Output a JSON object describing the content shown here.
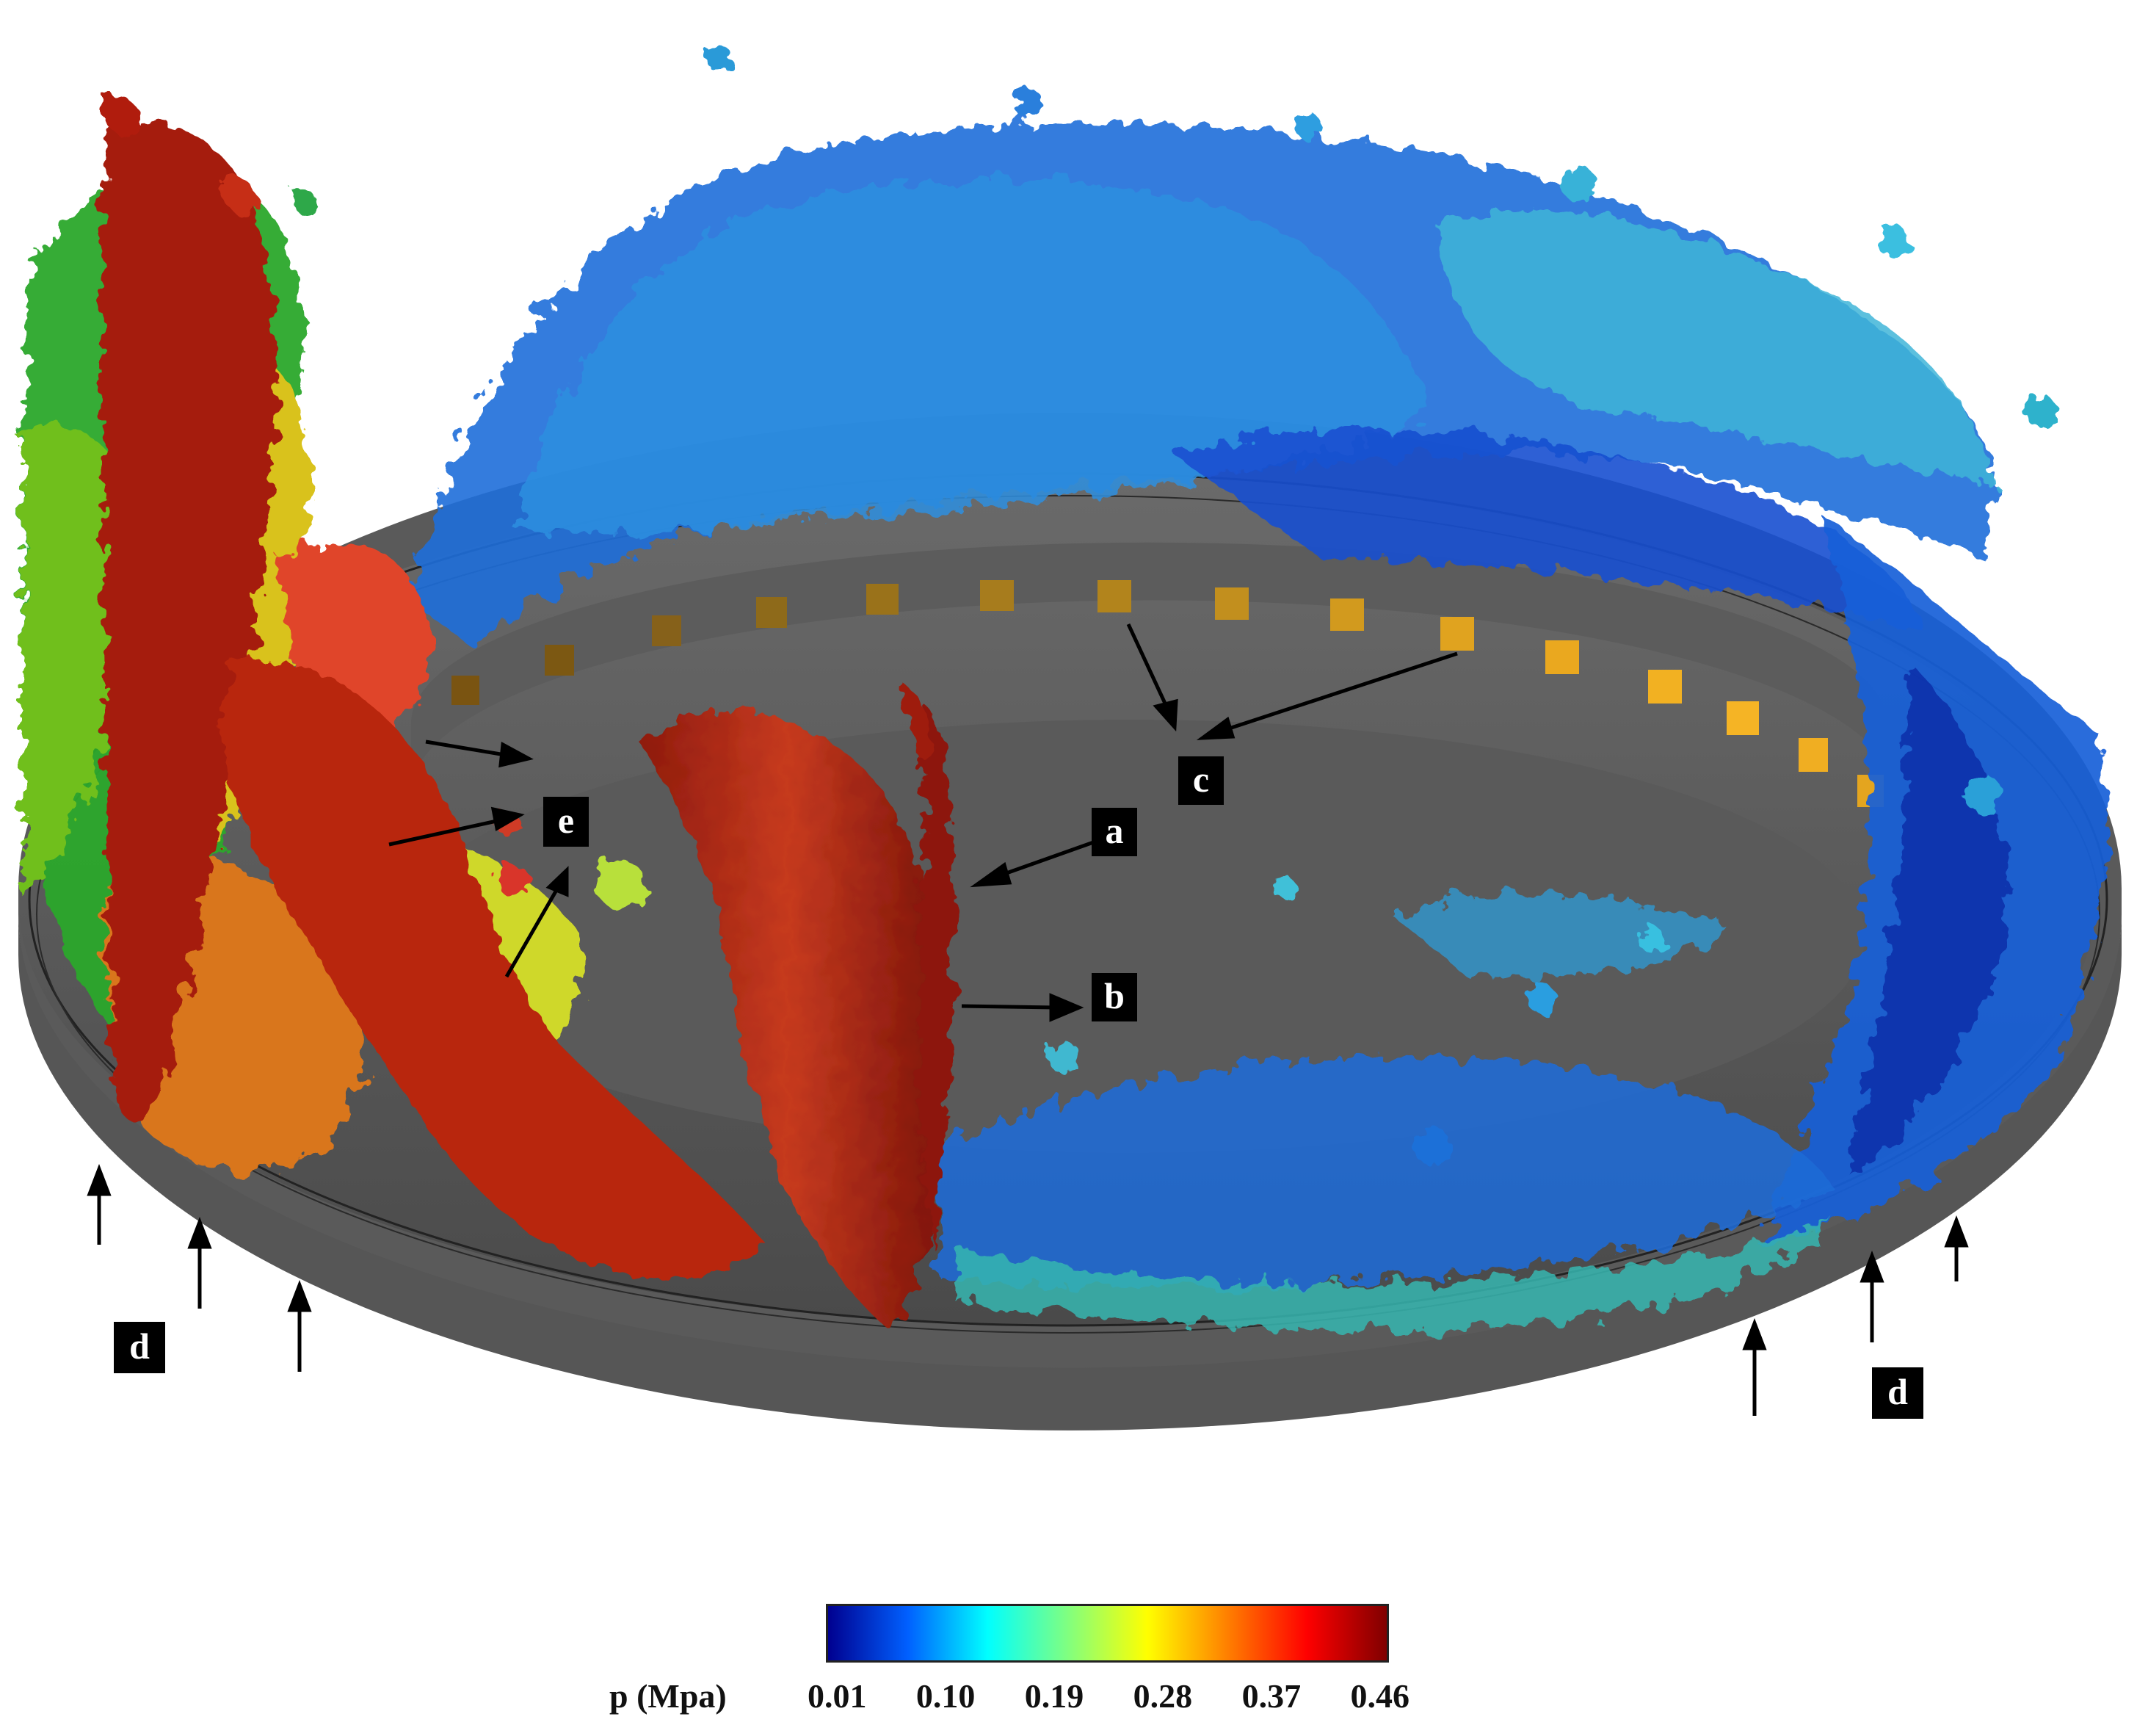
{
  "labels": [
    "a",
    "b",
    "c",
    "d",
    "e"
  ],
  "colorbar": {
    "title": "p (Mpa)",
    "ticks": [
      "0.01",
      "0.10",
      "0.19",
      "0.28",
      "0.37",
      "0.46"
    ],
    "colors": [
      "#00008f",
      "#0060ff",
      "#00ffff",
      "#80ff80",
      "#ffff00",
      "#ff8000",
      "#ff0000",
      "#800000"
    ]
  },
  "palette": {
    "ring_body": "#616161",
    "ring_top": "#4d4d4d",
    "nozzle_cells": "#e6a11a",
    "label_box": "#000000",
    "label_text": "#ffffff"
  }
}
